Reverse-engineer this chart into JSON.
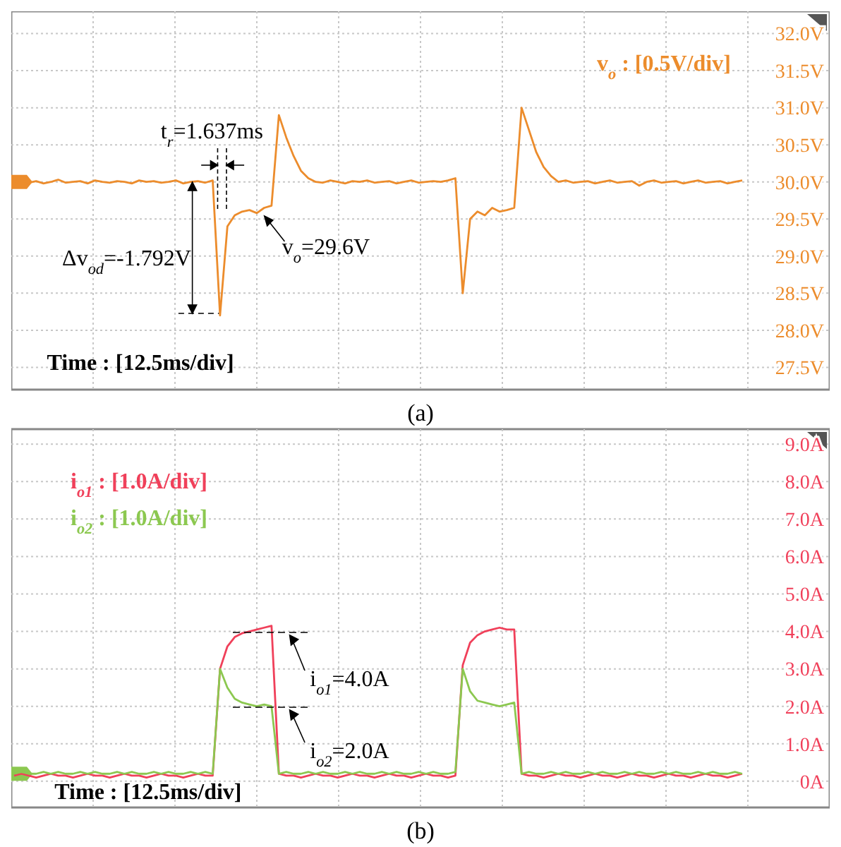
{
  "chart_data": [
    {
      "type": "line",
      "title": "(a)",
      "categories": [
        null,
        null,
        null,
        null,
        null,
        null,
        null,
        null,
        null,
        null,
        null,
        null,
        null,
        null,
        null,
        null,
        null,
        null,
        null,
        null,
        null,
        null,
        null,
        null,
        null,
        null,
        null,
        null,
        null,
        null,
        null,
        null,
        null,
        null,
        null,
        null,
        null,
        null,
        null,
        null,
        null,
        null,
        null,
        null,
        null,
        null,
        null,
        null,
        null,
        null,
        null,
        null,
        null,
        null,
        null,
        null,
        null,
        null,
        null,
        null,
        null,
        null,
        null,
        null,
        null,
        null,
        null,
        null,
        null,
        null,
        null,
        null,
        null,
        null,
        null,
        null,
        null,
        null,
        null,
        null,
        null,
        null,
        null,
        null,
        null,
        null,
        null,
        null,
        null,
        null,
        null,
        null,
        null,
        null,
        null,
        null,
        null,
        null,
        null,
        null
      ],
      "series": [
        {
          "name": "v$_{o}$ : [0.5V/div]",
          "color": "#ec8c2c",
          "values": [
            30.0,
            30.02,
            29.99,
            30.01,
            29.98,
            30.0,
            30.03,
            29.99,
            30.0,
            30.01,
            29.98,
            30.02,
            30.0,
            29.99,
            30.01,
            30.0,
            29.98,
            30.02,
            30.0,
            30.01,
            29.99,
            30.0,
            30.02,
            29.98,
            30.0,
            30.01,
            29.99,
            30.02,
            28.2,
            29.4,
            29.55,
            29.6,
            29.62,
            29.58,
            29.65,
            29.68,
            30.9,
            30.6,
            30.35,
            30.15,
            30.05,
            30.0,
            29.99,
            30.02,
            30.0,
            29.98,
            30.01,
            30.0,
            30.02,
            29.99,
            30.0,
            30.01,
            29.98,
            30.0,
            30.02,
            29.99,
            30.0,
            30.01,
            30.0,
            30.02,
            30.05,
            28.5,
            29.5,
            29.6,
            29.55,
            29.65,
            29.6,
            29.62,
            29.65,
            31.0,
            30.7,
            30.4,
            30.2,
            30.08,
            30.0,
            30.02,
            29.99,
            30.0,
            30.01,
            29.98,
            30.0,
            30.02,
            29.99,
            30.0,
            30.01,
            29.95,
            30.0,
            30.02,
            29.99,
            30.0,
            30.01,
            29.98,
            30.0,
            30.02,
            29.99,
            30.0,
            30.01,
            29.98,
            30.0,
            30.02
          ]
        }
      ],
      "ylim": [
        27.2,
        32.3
      ],
      "yticks": [
        {
          "value": 27.5,
          "label": "27.5V"
        },
        {
          "value": 28.0,
          "label": "28.0V"
        },
        {
          "value": 28.5,
          "label": "28.5V"
        },
        {
          "value": 29.0,
          "label": "29.0V"
        },
        {
          "value": 29.5,
          "label": "29.5V"
        },
        {
          "value": 30.0,
          "label": "30.0V"
        },
        {
          "value": 30.5,
          "label": "30.5V"
        },
        {
          "value": 31.0,
          "label": "31.0V"
        },
        {
          "value": 31.5,
          "label": "31.5V"
        },
        {
          "value": 32.0,
          "label": "32.0V"
        }
      ],
      "tick_labels": "y",
      "grid": true,
      "legend": "top right",
      "annotations": [
        "t$_{r}$=1.637ms",
        "Δv$_{od}$=-1.792V",
        "v$_{o}$=29.6V",
        "Time : [12.5ms/div]"
      ]
    },
    {
      "type": "line",
      "title": "(b)",
      "categories": [
        null,
        null,
        null,
        null,
        null,
        null,
        null,
        null,
        null,
        null,
        null,
        null,
        null,
        null,
        null,
        null,
        null,
        null,
        null,
        null,
        null,
        null,
        null,
        null,
        null,
        null,
        null,
        null,
        null,
        null,
        null,
        null,
        null,
        null,
        null,
        null,
        null,
        null,
        null,
        null,
        null,
        null,
        null,
        null,
        null,
        null,
        null,
        null,
        null,
        null,
        null,
        null,
        null,
        null,
        null,
        null,
        null,
        null,
        null,
        null,
        null,
        null,
        null,
        null,
        null,
        null,
        null,
        null,
        null,
        null,
        null,
        null,
        null,
        null,
        null,
        null,
        null,
        null,
        null,
        null,
        null,
        null,
        null,
        null,
        null,
        null,
        null,
        null,
        null,
        null,
        null,
        null,
        null,
        null,
        null,
        null,
        null,
        null,
        null,
        null
      ],
      "series": [
        {
          "name": "i$_{o1}$ : [1.0A/div]",
          "color": "#f0405a",
          "values": [
            0.15,
            0.2,
            0.15,
            0.1,
            0.15,
            0.2,
            0.15,
            0.15,
            0.1,
            0.15,
            0.2,
            0.15,
            0.15,
            0.1,
            0.15,
            0.2,
            0.15,
            0.15,
            0.1,
            0.15,
            0.2,
            0.15,
            0.15,
            0.1,
            0.15,
            0.2,
            0.15,
            0.15,
            3.0,
            3.6,
            3.85,
            3.95,
            4.0,
            4.05,
            4.1,
            4.15,
            0.2,
            0.15,
            0.15,
            0.1,
            0.15,
            0.2,
            0.15,
            0.15,
            0.1,
            0.15,
            0.2,
            0.15,
            0.15,
            0.1,
            0.15,
            0.2,
            0.15,
            0.15,
            0.1,
            0.15,
            0.2,
            0.15,
            0.15,
            0.1,
            0.15,
            3.1,
            3.7,
            3.9,
            4.0,
            4.05,
            4.1,
            4.05,
            4.05,
            0.2,
            0.15,
            0.15,
            0.1,
            0.15,
            0.2,
            0.15,
            0.15,
            0.1,
            0.15,
            0.2,
            0.15,
            0.15,
            0.1,
            0.15,
            0.2,
            0.15,
            0.15,
            0.1,
            0.15,
            0.2,
            0.15,
            0.15,
            0.1,
            0.15,
            0.2,
            0.15,
            0.15,
            0.1,
            0.15,
            0.2
          ]
        },
        {
          "name": "i$_{o2}$ : [1.0A/div]",
          "color": "#8cc850",
          "values": [
            0.2,
            0.25,
            0.2,
            0.2,
            0.25,
            0.2,
            0.25,
            0.2,
            0.2,
            0.25,
            0.2,
            0.25,
            0.2,
            0.2,
            0.25,
            0.2,
            0.25,
            0.2,
            0.2,
            0.25,
            0.2,
            0.25,
            0.2,
            0.2,
            0.25,
            0.2,
            0.25,
            0.2,
            3.0,
            2.5,
            2.2,
            2.1,
            2.05,
            2.0,
            2.05,
            2.0,
            0.2,
            0.25,
            0.2,
            0.2,
            0.25,
            0.2,
            0.25,
            0.2,
            0.2,
            0.25,
            0.2,
            0.25,
            0.2,
            0.2,
            0.25,
            0.2,
            0.25,
            0.2,
            0.2,
            0.25,
            0.2,
            0.25,
            0.2,
            0.2,
            0.25,
            3.0,
            2.4,
            2.15,
            2.1,
            2.05,
            2.0,
            2.05,
            2.1,
            0.2,
            0.25,
            0.2,
            0.2,
            0.25,
            0.2,
            0.25,
            0.2,
            0.2,
            0.25,
            0.2,
            0.25,
            0.2,
            0.2,
            0.25,
            0.2,
            0.25,
            0.2,
            0.2,
            0.25,
            0.2,
            0.25,
            0.2,
            0.2,
            0.25,
            0.2,
            0.25,
            0.2,
            0.2,
            0.25,
            0.2
          ]
        }
      ],
      "ylim": [
        -0.7,
        9.4
      ],
      "yticks": [
        {
          "value": 0,
          "label": "0A"
        },
        {
          "value": 1,
          "label": "1.0A"
        },
        {
          "value": 2,
          "label": "2.0A"
        },
        {
          "value": 3,
          "label": "3.0A"
        },
        {
          "value": 4,
          "label": "4.0A"
        },
        {
          "value": 5,
          "label": "5.0A"
        },
        {
          "value": 6,
          "label": "6.0A"
        },
        {
          "value": 7,
          "label": "7.0A"
        },
        {
          "value": 8,
          "label": "8.0A"
        },
        {
          "value": 9,
          "label": "9.0A"
        }
      ],
      "tick_labels": "y",
      "grid": true,
      "legend": "top left",
      "annotations": [
        "i$_{o1}$=4.0A",
        "i$_{o2}$=2.0A",
        "Time : [12.5ms/div]"
      ]
    }
  ]
}
